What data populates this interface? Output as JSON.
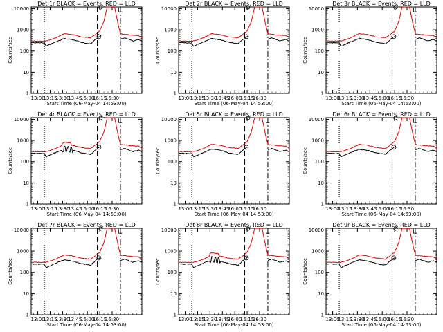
{
  "colors": {
    "events": "#000000",
    "lld": "#e00000",
    "background": "#ffffff"
  },
  "chart_data": [
    {
      "type": "line",
      "title": "Det 1r BLACK = Events, RED = LLD",
      "xlabel": "Start Time (06-May-04 14:53:00)",
      "ylabel": "Counts/sec",
      "yscale": "log",
      "ylim": [
        1,
        12000
      ],
      "xlim": [
        "12:52",
        "16:34"
      ],
      "x_ticks": [
        "13:00",
        "13:15",
        "13:30",
        "13:45",
        "16:00",
        "16:15",
        "16:30"
      ],
      "y_ticks": [
        "1",
        "10",
        "100",
        "1000",
        "10000"
      ],
      "series": []
    },
    {
      "type": "line",
      "title": "Det 2r BLACK = Events, RED = LLD",
      "xlabel": "Start Time (06-May-04 14:53:00)",
      "ylabel": "Counts/sec",
      "yscale": "log",
      "ylim": [
        1,
        12000
      ],
      "xlim": [
        "12:52",
        "16:34"
      ],
      "x_ticks": [
        "13:00",
        "13:15",
        "13:30",
        "13:45",
        "16:00",
        "16:15",
        "16:30"
      ],
      "y_ticks": [
        "1",
        "10",
        "100",
        "1000",
        "10000"
      ],
      "series": []
    },
    {
      "type": "line",
      "title": "Det 3r BLACK = Events, RED = LLD",
      "xlabel": "Start Time (06-May-04 14:53:00)",
      "ylabel": "Counts/sec",
      "yscale": "log",
      "ylim": [
        1,
        12000
      ],
      "xlim": [
        "12:52",
        "16:34"
      ],
      "x_ticks": [
        "13:00",
        "13:15",
        "13:30",
        "13:45",
        "16:00",
        "16:15",
        "16:30"
      ],
      "y_ticks": [
        "1",
        "10",
        "100",
        "1000",
        "10000"
      ],
      "series": []
    },
    {
      "type": "line",
      "title": "Det 4r BLACK = Events, RED = LLD",
      "xlabel": "Start Time (06-May-04 14:53:00)",
      "ylabel": "Counts/sec",
      "yscale": "log",
      "ylim": [
        1,
        12000
      ],
      "xlim": [
        "12:52",
        "16:34"
      ],
      "x_ticks": [
        "13:00",
        "13:15",
        "13:30",
        "13:45",
        "16:00",
        "16:15",
        "16:30"
      ],
      "y_ticks": [
        "1",
        "10",
        "100",
        "1000",
        "10000"
      ],
      "series": []
    },
    {
      "type": "line",
      "title": "Det 5r BLACK = Events, RED = LLD",
      "xlabel": "Start Time (06-May-04 14:53:00)",
      "ylabel": "Counts/sec",
      "yscale": "log",
      "ylim": [
        1,
        12000
      ],
      "xlim": [
        "12:52",
        "16:34"
      ],
      "x_ticks": [
        "13:00",
        "13:15",
        "13:30",
        "13:45",
        "16:00",
        "16:15",
        "16:30"
      ],
      "y_ticks": [
        "1",
        "10",
        "100",
        "1000",
        "10000"
      ],
      "series": []
    },
    {
      "type": "line",
      "title": "Det 6r BLACK = Events, RED = LLD",
      "xlabel": "Start Time (06-May-04 14:53:00)",
      "ylabel": "Counts/sec",
      "yscale": "log",
      "ylim": [
        1,
        12000
      ],
      "xlim": [
        "12:52",
        "16:34"
      ],
      "x_ticks": [
        "13:00",
        "13:15",
        "13:30",
        "13:45",
        "16:00",
        "16:15",
        "16:30"
      ],
      "y_ticks": [
        "1",
        "10",
        "100",
        "1000",
        "10000"
      ],
      "series": []
    },
    {
      "type": "line",
      "title": "Det 7r BLACK = Events, RED = LLD",
      "xlabel": "Start Time (06-May-04 14:53:00)",
      "ylabel": "Counts/sec",
      "yscale": "log",
      "ylim": [
        1,
        12000
      ],
      "xlim": [
        "12:52",
        "16:34"
      ],
      "x_ticks": [
        "13:00",
        "13:15",
        "13:30",
        "13:45",
        "16:00",
        "16:15",
        "16:30"
      ],
      "y_ticks": [
        "1",
        "10",
        "100",
        "1000",
        "10000"
      ],
      "series": []
    },
    {
      "type": "line",
      "title": "Det 8r BLACK = Events, RED = LLD",
      "xlabel": "Start Time (06-May-04 14:53:00)",
      "ylabel": "Counts/sec",
      "yscale": "log",
      "ylim": [
        1,
        12000
      ],
      "xlim": [
        "12:52",
        "16:34"
      ],
      "x_ticks": [
        "13:00",
        "13:15",
        "13:30",
        "13:45",
        "16:00",
        "16:15",
        "16:30"
      ],
      "y_ticks": [
        "1",
        "10",
        "100",
        "1000",
        "10000"
      ],
      "series": []
    },
    {
      "type": "line",
      "title": "Det 9r BLACK = Events, RED = LLD",
      "xlabel": "Start Time (06-May-04 14:53:00)",
      "ylabel": "Counts/sec",
      "yscale": "log",
      "ylim": [
        1,
        12000
      ],
      "xlim": [
        "12:52",
        "16:34"
      ],
      "x_ticks": [
        "13:00",
        "13:15",
        "13:30",
        "13:45",
        "16:00",
        "16:15",
        "16:30"
      ],
      "y_ticks": [
        "1",
        "10",
        "100",
        "1000",
        "10000"
      ],
      "series": []
    }
  ]
}
